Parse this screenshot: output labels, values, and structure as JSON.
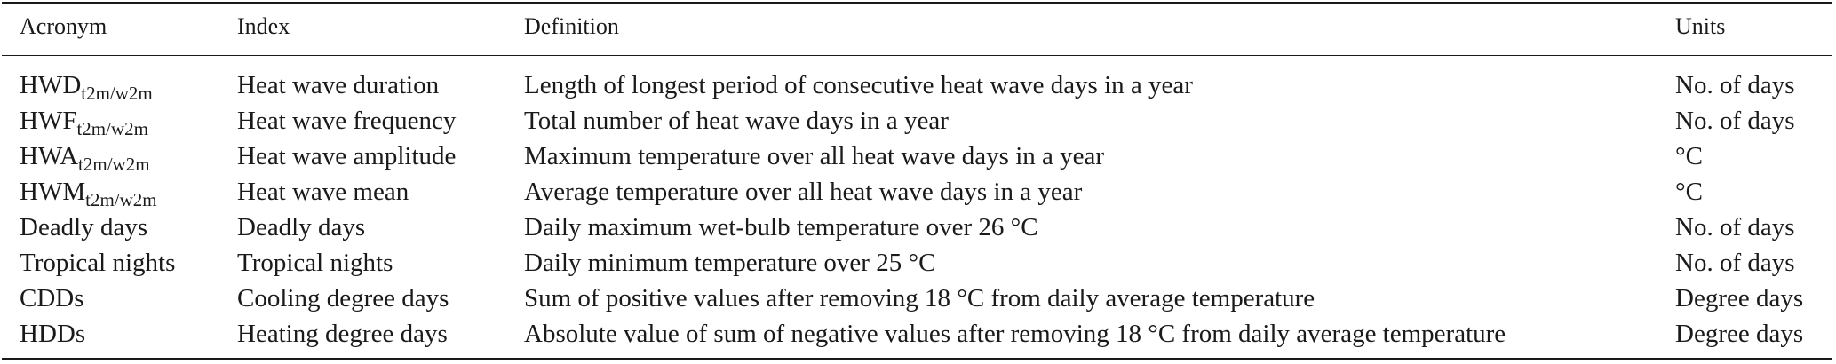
{
  "table": {
    "headers": {
      "acronym": "Acronym",
      "index": "Index",
      "definition": "Definition",
      "units": "Units"
    },
    "rows": [
      {
        "acronym": "HWD",
        "acronym_sub": "t2m/w2m",
        "index": "Heat wave duration",
        "definition": "Length of longest period of consecutive heat wave days in a year",
        "units": "No. of days"
      },
      {
        "acronym": "HWF",
        "acronym_sub": "t2m/w2m",
        "index": "Heat wave frequency",
        "definition": "Total number of heat wave days in a year",
        "units": "No. of days"
      },
      {
        "acronym": "HWA",
        "acronym_sub": "t2m/w2m",
        "index": "Heat wave amplitude",
        "definition": "Maximum temperature over all heat wave days in a year",
        "units": "°C"
      },
      {
        "acronym": "HWM",
        "acronym_sub": "t2m/w2m",
        "index": "Heat wave mean",
        "definition": "Average temperature over all heat wave days in a year",
        "units": "°C"
      },
      {
        "acronym": "Deadly days",
        "acronym_sub": "",
        "index": "Deadly days",
        "definition": "Daily maximum wet-bulb temperature over 26 °C",
        "units": "No. of days"
      },
      {
        "acronym": "Tropical nights",
        "acronym_sub": "",
        "index": "Tropical nights",
        "definition": "Daily minimum temperature over 25 °C",
        "units": "No. of days"
      },
      {
        "acronym": "CDDs",
        "acronym_sub": "",
        "index": "Cooling degree days",
        "definition": "Sum of positive values after removing 18 °C from daily average temperature",
        "units": "Degree days"
      },
      {
        "acronym": "HDDs",
        "acronym_sub": "",
        "index": "Heating degree days",
        "definition": "Absolute value of sum of negative values after removing 18 °C from daily average temperature",
        "units": "Degree days"
      }
    ]
  }
}
